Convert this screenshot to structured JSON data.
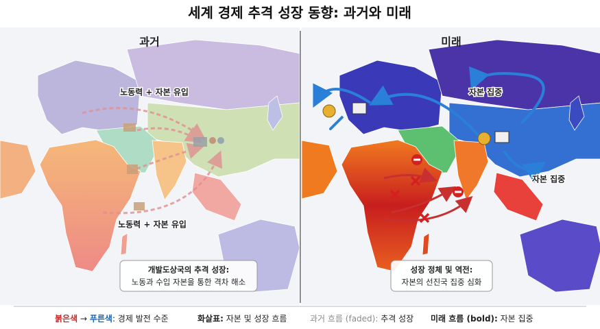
{
  "header": {
    "title": "세계 경제 추격 성장 동향: 과거와 미래"
  },
  "panels": [
    {
      "title": "과거",
      "labels": [
        "노동력 + 자본 유입",
        "노동력 + 자본 유입"
      ],
      "note": [
        "개발도상국의 추격 성장:",
        "노동과 수입 자본을 통한 격차 해소"
      ]
    },
    {
      "title": "미래",
      "labels": [
        "자본 집중",
        "자본 집중"
      ],
      "note": [
        "성장 정체 및 역전:",
        "자본의 선진국 집중 심화"
      ]
    }
  ],
  "legend": [
    [
      {
        "text": "붉은색",
        "color": "#c62828",
        "bold": true
      },
      {
        "text": " → ",
        "color": "#222222",
        "bold": false
      },
      {
        "text": "푸른색",
        "color": "#1565c0",
        "bold": true
      },
      {
        "text": ": 경제 발전 수준",
        "color": "#222222",
        "bold": false
      }
    ],
    [
      {
        "text": "화살표:",
        "color": "#222222",
        "bold": true
      },
      {
        "text": " 자본 및 성장 흐름",
        "color": "#222222",
        "bold": false
      }
    ],
    [
      {
        "text": "과거 흐름 (faded):",
        "color": "#8a8a8a",
        "bold": false
      },
      {
        "text": " 추격 성장",
        "color": "#222222",
        "bold": false
      }
    ],
    [
      {
        "text": "미래 흐름 (bold):",
        "color": "#222222",
        "bold": true
      },
      {
        "text": " 자본 집중",
        "color": "#222222",
        "bold": false
      }
    ]
  ]
}
